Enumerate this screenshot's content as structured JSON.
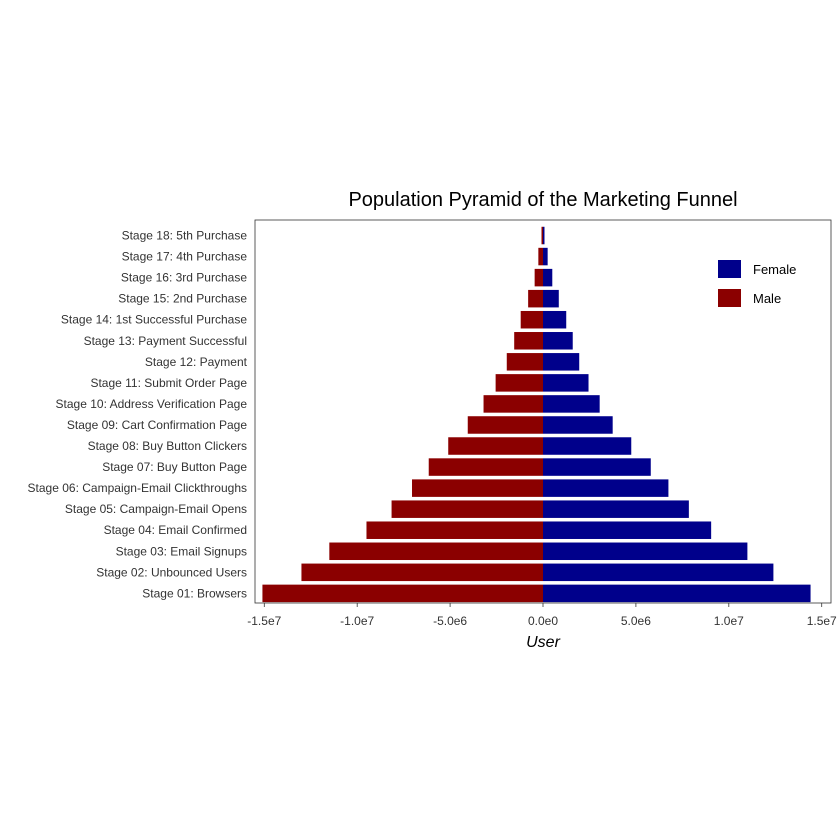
{
  "chart_data": {
    "type": "bar",
    "orientation": "horizontal",
    "title": "Population Pyramid of the Marketing Funnel",
    "xlabel": "User",
    "ylabel": "",
    "xlim": [
      -15500000,
      15500000
    ],
    "xticks": [
      -15000000,
      -10000000,
      -5000000,
      0,
      5000000,
      10000000,
      15000000
    ],
    "xtick_labels": [
      "-1.5e7",
      "-1.0e7",
      "-5.0e6",
      "0.0e0",
      "5.0e6",
      "1.0e7",
      "1.5e7"
    ],
    "grid": false,
    "legend_position": "top-right",
    "categories": [
      "Stage 01: Browsers",
      "Stage 02: Unbounced Users",
      "Stage 03: Email Signups",
      "Stage 04: Email Confirmed",
      "Stage 05: Campaign-Email Opens",
      "Stage 06: Campaign-Email Clickthroughs",
      "Stage 07: Buy Button Page",
      "Stage 08: Buy Button Clickers",
      "Stage 09: Cart Confirmation Page",
      "Stage 10: Address Verification Page",
      "Stage 11: Submit Order Page",
      "Stage 12: Payment",
      "Stage 13: Payment Successful",
      "Stage 14: 1st Successful Purchase",
      "Stage 15: 2nd Purchase",
      "Stage 16: 3rd Purchase",
      "Stage 17: 4th Purchase",
      "Stage 18: 5th Purchase"
    ],
    "series": [
      {
        "name": "Female",
        "color": "#00008B",
        "values": [
          14400000,
          12400000,
          11000000,
          9050000,
          7850000,
          6750000,
          5800000,
          4750000,
          3750000,
          3050000,
          2450000,
          1950000,
          1600000,
          1250000,
          850000,
          500000,
          250000,
          80000
        ]
      },
      {
        "name": "Male",
        "color": "#8B0000",
        "values": [
          -15100000,
          -13000000,
          -11500000,
          -9500000,
          -8150000,
          -7050000,
          -6150000,
          -5100000,
          -4050000,
          -3200000,
          -2550000,
          -1950000,
          -1550000,
          -1200000,
          -800000,
          -450000,
          -250000,
          -80000
        ]
      }
    ]
  }
}
